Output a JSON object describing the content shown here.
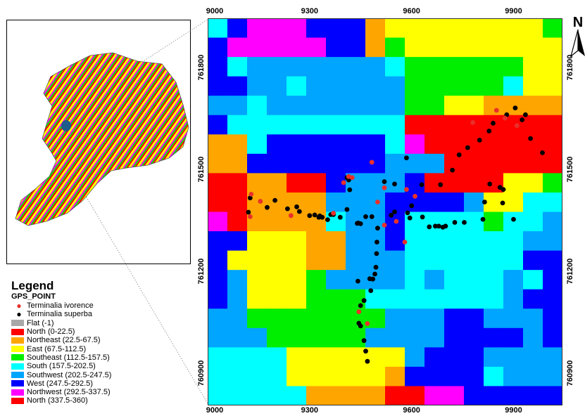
{
  "legend": {
    "title": "Legend",
    "layer": "GPS_POINT",
    "points": [
      {
        "label": "Terminalia ivorence",
        "color": "#e8302a"
      },
      {
        "label": "Terminalia superba",
        "color": "#000000"
      }
    ],
    "classes": [
      {
        "label": "Flat (-1)",
        "color": "#a8a8a8"
      },
      {
        "label": "North (0-22.5)",
        "color": "#ff0000"
      },
      {
        "label": "Northeast (22.5-67.5)",
        "color": "#ffa500"
      },
      {
        "label": "East (67.5-112.5)",
        "color": "#ffff00"
      },
      {
        "label": "Southeast (112.5-157.5)",
        "color": "#00ee00"
      },
      {
        "label": "South (157.5-202.5)",
        "color": "#00ffff"
      },
      {
        "label": "Southwest (202.5-247.5)",
        "color": "#00a5ff"
      },
      {
        "label": "West (247.5-292.5)",
        "color": "#0000ff"
      },
      {
        "label": "Northwest (292.5-337.5)",
        "color": "#ff00ff"
      },
      {
        "label": "North (337.5-360)",
        "color": "#ff0000"
      }
    ]
  },
  "axes": {
    "x_ticks": [
      {
        "label": "9000",
        "value": 9000
      },
      {
        "label": "9300",
        "value": 9300
      },
      {
        "label": "9600",
        "value": 9600
      },
      {
        "label": "9900",
        "value": 9900
      }
    ],
    "y_ticks": [
      {
        "label": "761800",
        "value": 761800
      },
      {
        "label": "761500",
        "value": 761500
      },
      {
        "label": "761200",
        "value": 761200
      },
      {
        "label": "760900",
        "value": 760900
      }
    ]
  },
  "north_arrow": {
    "label": "N",
    "icon": "north-arrow-icon"
  },
  "aspect_grid": {
    "codes": {
      "R": "#ff0000",
      "O": "#ffa500",
      "Y": "#ffff00",
      "G": "#00ee00",
      "C": "#00ffff",
      "L": "#00a5ff",
      "B": "#0000ff",
      "M": "#ff00ff"
    },
    "rows": [
      "CBMMMBBBOYYYYYYYYG",
      "BMMMMMBBOGYYYYYYYY",
      "BCLLLLLLLCGGGGGGYY",
      "BBLLCLLLLLGGGGGCYY",
      "LLCLLLLLLLGGYYOOOO",
      "BCCCCCCCCCRRRRRRRR",
      "OOCBBBBBBCMRRRRRRR",
      "OOBBBBBBBLLLRRRRRR",
      "RROORRBLLLBRRRRYYG",
      "RROOOOLLLBBBBLYYCC",
      "MROOOOCLLBCCCCGCCL",
      "BBYYYOOLLBCCCCCCLL",
      "BYYYYOOLLLCCCCCCBB",
      "BLYYYGLLLLCLCCCLCB",
      "BLYYYGGGCCCCCCCLBB",
      "LLGGGGGGGLLLBBLLLB",
      "LLLGGGGGLLLLBBBBLB",
      "CCCCYYYYYYLBBBLLLL",
      "CCCCYYYYYOBBBBCLLL",
      "CCCCCOOOORRMMBBBBB"
    ]
  },
  "gps_points": {
    "terminalia_superba": [
      [
        9585,
        761533
      ],
      [
        9410,
        761475
      ],
      [
        9415,
        761468
      ],
      [
        9418,
        761439
      ],
      [
        9520,
        761463
      ],
      [
        9550,
        761456
      ],
      [
        9630,
        761454
      ],
      [
        9685,
        761454
      ],
      [
        9720,
        761497
      ],
      [
        9740,
        761542
      ],
      [
        9765,
        761563
      ],
      [
        9800,
        761585
      ],
      [
        9828,
        761612
      ],
      [
        9840,
        761635
      ],
      [
        9880,
        761660
      ],
      [
        9905,
        761680
      ],
      [
        9935,
        761660
      ],
      [
        9925,
        761645
      ],
      [
        9950,
        761590
      ],
      [
        9985,
        761548
      ],
      [
        9830,
        761456
      ],
      [
        9860,
        761446
      ],
      [
        9870,
        761440
      ],
      [
        9815,
        761403
      ],
      [
        9868,
        761400
      ],
      [
        9900,
        761352
      ],
      [
        9810,
        761352
      ],
      [
        9755,
        761343
      ],
      [
        9727,
        761343
      ],
      [
        9700,
        761332
      ],
      [
        9692,
        761329
      ],
      [
        9680,
        761332
      ],
      [
        9670,
        761332
      ],
      [
        9652,
        761330
      ],
      [
        9632,
        761359
      ],
      [
        9600,
        761392
      ],
      [
        9595,
        761356
      ],
      [
        9588,
        761371
      ],
      [
        9550,
        761374
      ],
      [
        9540,
        761364
      ],
      [
        9483,
        761360
      ],
      [
        9465,
        761360
      ],
      [
        9450,
        761339
      ],
      [
        9443,
        761341
      ],
      [
        9410,
        761381
      ],
      [
        9390,
        761358
      ],
      [
        9370,
        761366
      ],
      [
        9362,
        761366
      ],
      [
        9353,
        761351
      ],
      [
        9337,
        761358
      ],
      [
        9327,
        761358
      ],
      [
        9300,
        761363
      ],
      [
        9315,
        761365
      ],
      [
        9270,
        761375
      ],
      [
        9262,
        761389
      ],
      [
        9235,
        761383
      ],
      [
        9198,
        761408
      ],
      [
        9175,
        761387
      ],
      [
        9125,
        761415
      ],
      [
        9120,
        761373
      ],
      [
        9330,
        761362
      ],
      [
        9440,
        761340
      ],
      [
        9500,
        761326
      ],
      [
        9498,
        761285
      ],
      [
        9497,
        761251
      ],
      [
        9495,
        761211
      ],
      [
        9492,
        761191
      ],
      [
        9486,
        761176
      ],
      [
        9480,
        761142
      ],
      [
        9460,
        761113
      ],
      [
        9450,
        761098
      ],
      [
        9445,
        761046
      ],
      [
        9470,
        760934
      ],
      [
        9465,
        760964
      ],
      [
        9460,
        760995
      ],
      [
        9450,
        761038
      ],
      [
        9477,
        761177
      ],
      [
        9442,
        761170
      ]
    ],
    "terminalia_ivorence": [
      [
        9483,
        761520
      ],
      [
        9425,
        761475
      ],
      [
        9415,
        761478
      ],
      [
        9400,
        761460
      ],
      [
        9520,
        761445
      ],
      [
        9500,
        761403
      ],
      [
        9555,
        761346
      ],
      [
        9580,
        761285
      ],
      [
        9445,
        761080
      ],
      [
        9470,
        761045
      ],
      [
        9780,
        761637
      ],
      [
        9850,
        761673
      ],
      [
        9875,
        761650
      ],
      [
        9910,
        761628
      ],
      [
        9128,
        761426
      ],
      [
        9155,
        761405
      ],
      [
        9245,
        761363
      ],
      [
        9370,
        761370
      ],
      [
        9585,
        761440
      ],
      [
        9610,
        761420
      ],
      [
        9520,
        761335
      ],
      [
        9125,
        761360
      ]
    ]
  }
}
